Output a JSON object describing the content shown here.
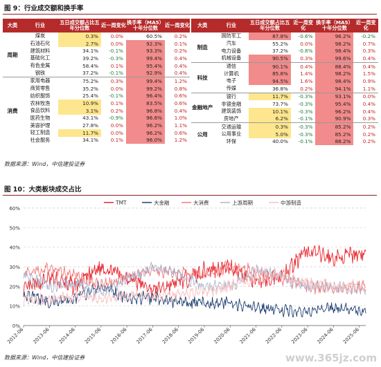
{
  "fig9_title": "图 9：行业成交额和换手率",
  "fig10_title": "图 10：大类板块成交占比",
  "source1": "数据来源：Wind，中信建投证券",
  "source2": "数据来源：Wind，中信建投证券",
  "watermark": "www.365jz.com",
  "table_headers": [
    "大类",
    "行业",
    "五日成交额占比五年分位数",
    "近一周变化",
    "换手率（MA5）十年分位数",
    "近一周变化"
  ],
  "left_groups": [
    {
      "name": "周期",
      "rows": [
        {
          "industry": "煤炭",
          "p5": "0.3%",
          "c1": "0.0%",
          "t10": "60.5%",
          "c2": "0.2%",
          "hp": "y",
          "ht": ""
        },
        {
          "industry": "石油石化",
          "p5": "2.7%",
          "c1": "0.0%",
          "t10": "92.3%",
          "c2": "0.1%",
          "hp": "y",
          "ht": "r"
        },
        {
          "industry": "建筑材料",
          "p5": "34.1%",
          "c1": "-0.1%",
          "t10": "93.3%",
          "c2": "0.2%",
          "hp": "",
          "ht": "r"
        },
        {
          "industry": "基础化工",
          "p5": "39.2%",
          "c1": "-0.3%",
          "t10": "99.4%",
          "c2": "0.4%",
          "hp": "",
          "ht": "r"
        },
        {
          "industry": "有色金属",
          "p5": "58.4%",
          "c1": "0.1%",
          "t10": "95.4%",
          "c2": "0.4%",
          "hp": "",
          "ht": "r"
        },
        {
          "industry": "钢铁",
          "p5": "37.2%",
          "c1": "-0.1%",
          "t10": "92.9%",
          "c2": "0.4%",
          "hp": "",
          "ht": "r"
        }
      ]
    },
    {
      "name": "消费",
      "rows": [
        {
          "industry": "家用电器",
          "p5": "75.2%",
          "c1": "0.3%",
          "t10": "99.4%",
          "c2": "1.2%",
          "hp": "",
          "ht": "r"
        },
        {
          "industry": "商贸零售",
          "p5": "35.2%",
          "c1": "0.0%",
          "t10": "99.2%",
          "c2": "0.8%",
          "hp": "",
          "ht": "r"
        },
        {
          "industry": "纺织服饰",
          "p5": "25.4%",
          "c1": "-0.1%",
          "t10": "96.4%",
          "c2": "0.6%",
          "hp": "",
          "ht": "r"
        },
        {
          "industry": "农林牧渔",
          "p5": "10.9%",
          "c1": "0.1%",
          "t10": "83.5%",
          "c2": "0.6%",
          "hp": "y",
          "ht": "r"
        },
        {
          "industry": "食品饮料",
          "p5": "3.1%",
          "c1": "0.2%",
          "t10": "96.8%",
          "c2": "0.4%",
          "hp": "y",
          "ht": "r"
        },
        {
          "industry": "医药生物",
          "p5": "43.1%",
          "c1": "-0.9%",
          "t10": "96.6%",
          "c2": "1.0%",
          "hp": "",
          "ht": "r"
        },
        {
          "industry": "美容护理",
          "p5": "27.8%",
          "c1": "0.0%",
          "t10": "96.2%",
          "c2": "1.1%",
          "hp": "",
          "ht": "r"
        },
        {
          "industry": "轻工制造",
          "p5": "11.7%",
          "c1": "0.0%",
          "t10": "96.2%",
          "c2": "0.6%",
          "hp": "y",
          "ht": "r"
        },
        {
          "industry": "社会服务",
          "p5": "34.1%",
          "c1": "0.1%",
          "t10": "96.0%",
          "c2": "1.2%",
          "hp": "",
          "ht": "r"
        }
      ]
    }
  ],
  "right_groups": [
    {
      "name": "制造",
      "rows": [
        {
          "industry": "国防军工",
          "p5": "87.8%",
          "c1": "-0.6%",
          "t10": "96.2%",
          "c2": "-0.2%",
          "hp": "r",
          "ht": "r"
        },
        {
          "industry": "汽车",
          "p5": "55.2%",
          "c1": "0.0%",
          "t10": "98.2%",
          "c2": "0.7%",
          "hp": "",
          "ht": "r"
        },
        {
          "industry": "电力设备",
          "p5": "37.2%",
          "c1": "-0.8%",
          "t10": "98.4%",
          "c2": "0.3%",
          "hp": "",
          "ht": "r"
        },
        {
          "industry": "机械设备",
          "p5": "90.5%",
          "c1": "0.3%",
          "t10": "99.6%",
          "c2": "0.4%",
          "hp": "r",
          "ht": "r"
        }
      ]
    },
    {
      "name": "科技",
      "rows": [
        {
          "industry": "通信",
          "p5": "90.1%",
          "c1": "0.4%",
          "t10": "88.4%",
          "c2": "0.4%",
          "hp": "r",
          "ht": "r"
        },
        {
          "industry": "计算机",
          "p5": "85.8%",
          "c1": "1.4%",
          "t10": "98.2%",
          "c2": "1.5%",
          "hp": "r",
          "ht": "r"
        },
        {
          "industry": "电子",
          "p5": "94.5%",
          "c1": "1.6%",
          "t10": "98.4%",
          "c2": "0.9%",
          "hp": "r",
          "ht": "r"
        },
        {
          "industry": "传媒",
          "p5": "36.8%",
          "c1": "0.2%",
          "t10": "94.1%",
          "c2": "1.1%",
          "hp": "",
          "ht": "r"
        }
      ]
    },
    {
      "name": "金融地产",
      "rows": [
        {
          "industry": "银行",
          "p5": "11.7%",
          "c1": "-0.3%",
          "t10": "93.1%",
          "c2": "0.0%",
          "hp": "y",
          "ht": "r"
        },
        {
          "industry": "非银金融",
          "p5": "73.7%",
          "c1": "-0.3%",
          "t10": "95.4%",
          "c2": "0.4%",
          "hp": "",
          "ht": "r"
        },
        {
          "industry": "建筑装饰",
          "p5": "10.1%",
          "c1": "-0.3%",
          "t10": "96.2%",
          "c2": "0.4%",
          "hp": "y",
          "ht": "r"
        },
        {
          "industry": "房地产",
          "p5": "6.2%",
          "c1": "-0.1%",
          "t10": "90.9%",
          "c2": "0.3%",
          "hp": "y",
          "ht": "r"
        }
      ]
    },
    {
      "name": "公用",
      "rows": [
        {
          "industry": "交通运输",
          "p5": "0.3%",
          "c1": "-0.3%",
          "t10": "85.2%",
          "c2": "0.2%",
          "hp": "y",
          "ht": "r"
        },
        {
          "industry": "公用事业",
          "p5": "5.0%",
          "c1": "-0.3%",
          "t10": "85.2%",
          "c2": "0.2%",
          "hp": "y",
          "ht": "r"
        },
        {
          "industry": "环保",
          "p5": "40.0%",
          "c1": "-0.1%",
          "t10": "88.2%",
          "c2": "0.2%",
          "hp": "",
          "ht": "r"
        }
      ]
    }
  ],
  "chart_data": {
    "type": "line",
    "title": "",
    "ylim": [
      0,
      60
    ],
    "yticks": [
      "0%",
      "10%",
      "20%",
      "30%",
      "40%",
      "50%",
      "60%"
    ],
    "x_ticks": [
      "2012-06",
      "2013-06",
      "2014-06",
      "2015-06",
      "2016-06",
      "2017-06",
      "2018-06",
      "2019-06",
      "2020-06",
      "2021-06",
      "2022-06",
      "2023-06",
      "2024-06",
      "2025-06"
    ],
    "x_range": [
      "2012-06",
      "2025-09"
    ],
    "grid": "horizontal dashed",
    "legend_position": "top",
    "series": [
      {
        "name": "TMT",
        "color": "#e8222b",
        "x": [
          "2012-06",
          "2013-06",
          "2014-06",
          "2015-06",
          "2016-06",
          "2017-06",
          "2018-06",
          "2019-06",
          "2020-06",
          "2021-06",
          "2022-06",
          "2023-06",
          "2024-06",
          "2025-06",
          "2025-09"
        ],
        "values": [
          18,
          24,
          20,
          30,
          25,
          18,
          22,
          28,
          30,
          22,
          26,
          38,
          34,
          37,
          36
        ]
      },
      {
        "name": "大金融",
        "color": "#1f3f72",
        "x": [
          "2012-06",
          "2013-06",
          "2014-06",
          "2015-06",
          "2016-06",
          "2017-06",
          "2018-06",
          "2019-06",
          "2020-06",
          "2021-06",
          "2022-06",
          "2023-06",
          "2024-06",
          "2025-06",
          "2025-09"
        ],
        "values": [
          16,
          12,
          14,
          20,
          14,
          14,
          12,
          12,
          11,
          9,
          8,
          7,
          9,
          7,
          7
        ]
      },
      {
        "name": "大消费",
        "color": "#f07a7a",
        "x": [
          "2012-06",
          "2013-06",
          "2014-06",
          "2015-06",
          "2016-06",
          "2017-06",
          "2018-06",
          "2019-06",
          "2020-06",
          "2021-06",
          "2022-06",
          "2023-06",
          "2024-06",
          "2025-06",
          "2025-09"
        ],
        "values": [
          27,
          29,
          26,
          20,
          25,
          28,
          27,
          26,
          30,
          28,
          24,
          20,
          19,
          20,
          20
        ]
      },
      {
        "name": "上游周期",
        "color": "#a8b6cf",
        "x": [
          "2012-06",
          "2013-06",
          "2014-06",
          "2015-06",
          "2016-06",
          "2017-06",
          "2018-06",
          "2019-06",
          "2020-06",
          "2021-06",
          "2022-06",
          "2023-06",
          "2024-06",
          "2025-06",
          "2025-09"
        ],
        "values": [
          26,
          20,
          22,
          16,
          24,
          30,
          26,
          20,
          20,
          28,
          25,
          20,
          20,
          19,
          18
        ]
      },
      {
        "name": "中游制造",
        "color": "#f6c0c0",
        "x": [
          "2012-06",
          "2013-06",
          "2014-06",
          "2015-06",
          "2016-06",
          "2017-06",
          "2018-06",
          "2019-06",
          "2020-06",
          "2021-06",
          "2022-06",
          "2023-06",
          "2024-06",
          "2025-06",
          "2025-09"
        ],
        "values": [
          13,
          14,
          15,
          14,
          16,
          15,
          16,
          17,
          20,
          24,
          26,
          22,
          20,
          21,
          20
        ]
      }
    ]
  }
}
